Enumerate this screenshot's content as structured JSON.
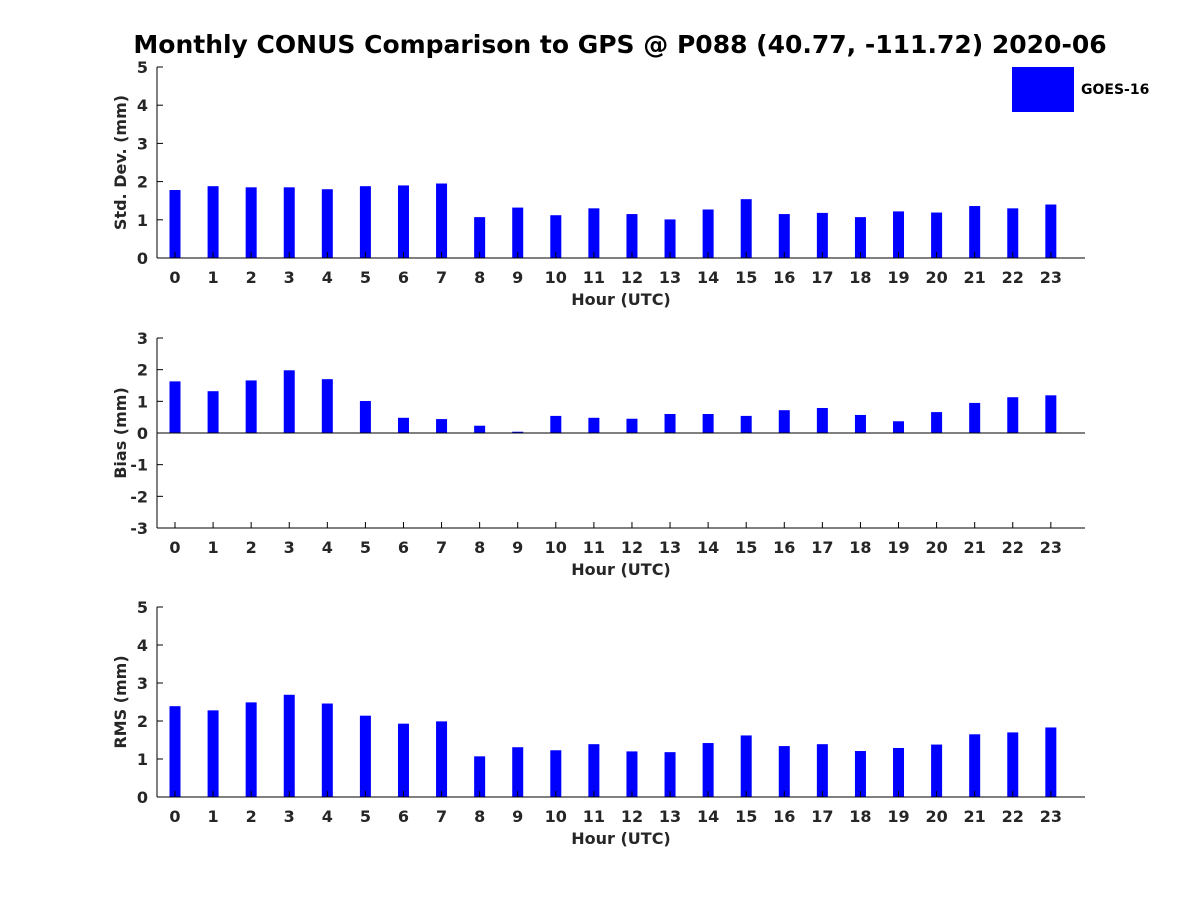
{
  "figure": {
    "title": "Monthly CONUS Comparison to GPS @ P088 (40.77, -111.72) 2020-06",
    "legend": [
      {
        "label": "GOES-16",
        "color": "#0000ff"
      }
    ]
  },
  "chart_data": [
    {
      "type": "bar",
      "categories": [
        "0",
        "1",
        "2",
        "3",
        "4",
        "5",
        "6",
        "7",
        "8",
        "9",
        "10",
        "11",
        "12",
        "13",
        "14",
        "15",
        "16",
        "17",
        "18",
        "19",
        "20",
        "21",
        "22",
        "23"
      ],
      "series": [
        {
          "name": "GOES-16",
          "color": "#0000ff",
          "values": [
            1.78,
            1.88,
            1.85,
            1.85,
            1.8,
            1.88,
            1.9,
            1.95,
            1.07,
            1.32,
            1.12,
            1.3,
            1.15,
            1.01,
            1.27,
            1.54,
            1.15,
            1.18,
            1.07,
            1.22,
            1.19,
            1.36,
            1.3,
            1.4
          ]
        }
      ],
      "xlabel": "Hour (UTC)",
      "ylabel": "Std. Dev. (mm)",
      "ylim": [
        0,
        5
      ],
      "yticks": [
        "0",
        "1",
        "2",
        "3",
        "4",
        "5"
      ],
      "grid": false
    },
    {
      "type": "bar",
      "categories": [
        "0",
        "1",
        "2",
        "3",
        "4",
        "5",
        "6",
        "7",
        "8",
        "9",
        "10",
        "11",
        "12",
        "13",
        "14",
        "15",
        "16",
        "17",
        "18",
        "19",
        "20",
        "21",
        "22",
        "23"
      ],
      "series": [
        {
          "name": "GOES-16",
          "color": "#0000ff",
          "values": [
            1.63,
            1.32,
            1.66,
            1.98,
            1.7,
            1.01,
            0.48,
            0.44,
            0.23,
            0.04,
            0.54,
            0.48,
            0.45,
            0.6,
            0.6,
            0.54,
            0.72,
            0.79,
            0.57,
            0.37,
            0.66,
            0.95,
            1.13,
            1.19
          ]
        }
      ],
      "xlabel": "Hour (UTC)",
      "ylabel": "Bias (mm)",
      "ylim": [
        -3,
        3
      ],
      "yticks": [
        "-3",
        "-2",
        "-1",
        "0",
        "1",
        "2",
        "3"
      ],
      "zero_line": true,
      "grid": false
    },
    {
      "type": "bar",
      "categories": [
        "0",
        "1",
        "2",
        "3",
        "4",
        "5",
        "6",
        "7",
        "8",
        "9",
        "10",
        "11",
        "12",
        "13",
        "14",
        "15",
        "16",
        "17",
        "18",
        "19",
        "20",
        "21",
        "22",
        "23"
      ],
      "series": [
        {
          "name": "GOES-16",
          "color": "#0000ff",
          "values": [
            2.39,
            2.28,
            2.49,
            2.69,
            2.46,
            2.14,
            1.93,
            1.99,
            1.07,
            1.31,
            1.23,
            1.39,
            1.2,
            1.18,
            1.42,
            1.62,
            1.34,
            1.39,
            1.21,
            1.29,
            1.38,
            1.65,
            1.7,
            1.83
          ]
        }
      ],
      "xlabel": "Hour (UTC)",
      "ylabel": "RMS (mm)",
      "ylim": [
        0,
        5
      ],
      "yticks": [
        "0",
        "1",
        "2",
        "3",
        "4",
        "5"
      ],
      "grid": false
    }
  ]
}
